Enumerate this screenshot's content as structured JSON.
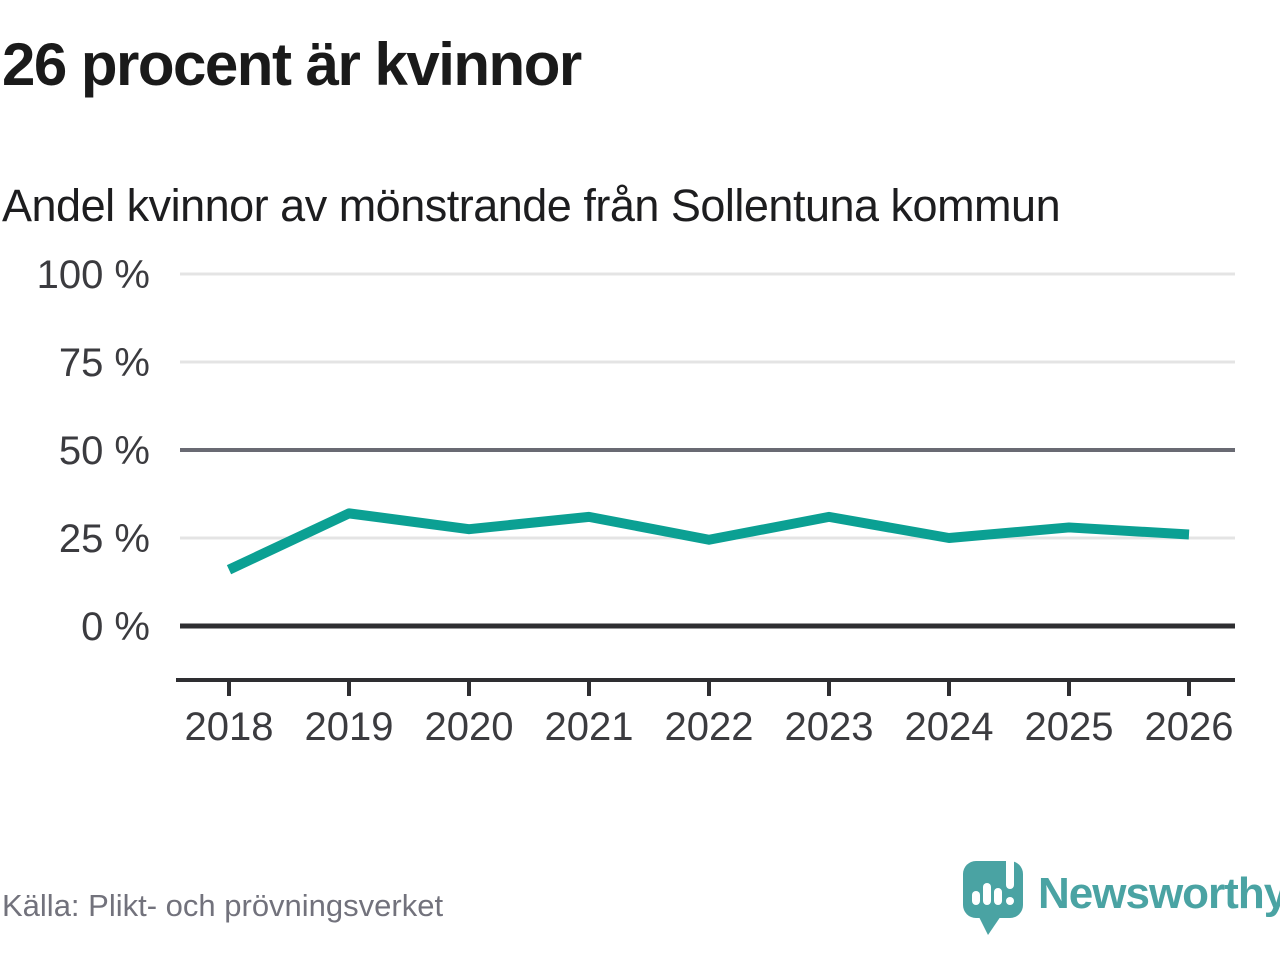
{
  "header": {
    "title": "26 procent är kvinnor",
    "subtitle": "Andel kvinnor av mönstrande från Sollentuna kommun"
  },
  "chart_data": {
    "type": "line",
    "title": "26 procent är kvinnor",
    "subtitle": "Andel kvinnor av mönstrande från Sollentuna kommun",
    "x": [
      2018,
      2019,
      2020,
      2021,
      2022,
      2023,
      2024,
      2025,
      2026
    ],
    "series": [
      {
        "name": "Andel kvinnor av mönstrande",
        "values": [
          16,
          32,
          27.5,
          31,
          24.5,
          31,
          25,
          28,
          26
        ]
      }
    ],
    "xlabel": "",
    "ylabel": "",
    "ylim": [
      0,
      100
    ],
    "y_ticks": [
      0,
      25,
      50,
      75,
      100
    ],
    "y_tick_labels": [
      "0 %",
      "25 %",
      "50 %",
      "75 %",
      "100 %"
    ],
    "grid": true,
    "legend_position": "none",
    "line_color": "#0ba093"
  },
  "footer": {
    "source": "Källa: Plikt- och prövningsverket",
    "brand": "Newsworthy",
    "logo_icon": "bar-chart-speech-bubble-icon"
  },
  "colors": {
    "line": "#0ba093",
    "grid_light": "#e4e4e4",
    "grid_mid": "#696a73",
    "axis_dark": "#2e2e31",
    "tick_text": "#3b3b3f",
    "title_text": "#1a1a1a",
    "source_text": "#72727c",
    "brand_teal": "#4aa3a3"
  }
}
